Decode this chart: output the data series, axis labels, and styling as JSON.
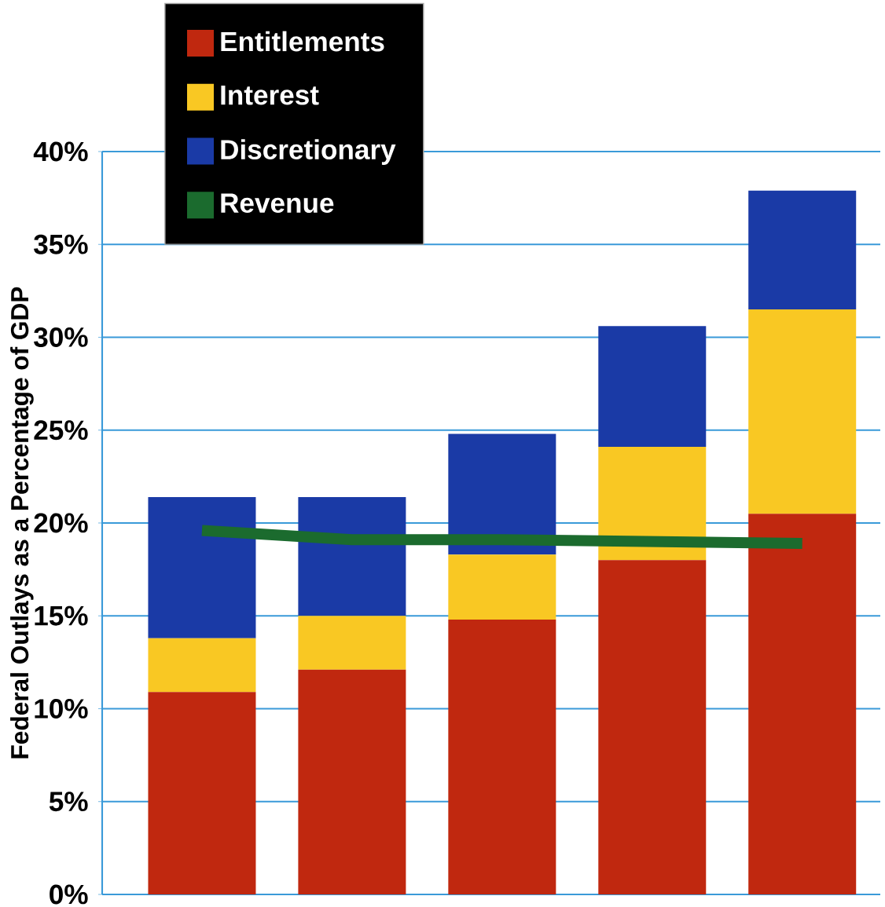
{
  "chart_data": {
    "type": "bar",
    "stacked": true,
    "ylabel": "Federal Outlays as a Percentage of GDP",
    "categories": [
      null,
      null,
      null,
      null,
      null
    ],
    "ylim": [
      0,
      40
    ],
    "yticks": [
      {
        "value": 0,
        "label": "0%"
      },
      {
        "value": 5,
        "label": "5%"
      },
      {
        "value": 10,
        "label": "10%"
      },
      {
        "value": 15,
        "label": "15%"
      },
      {
        "value": 20,
        "label": "20%"
      },
      {
        "value": 25,
        "label": "25%"
      },
      {
        "value": 30,
        "label": "30%"
      },
      {
        "value": 35,
        "label": "35%"
      },
      {
        "value": 40,
        "label": "40%"
      }
    ],
    "grid": "y",
    "legend": "top left",
    "series": [
      {
        "name": "Entitlements",
        "color": "#c0280f",
        "values": [
          10.9,
          12.1,
          14.8,
          18.0,
          20.5
        ]
      },
      {
        "name": "Interest",
        "color": "#f9c823",
        "values": [
          2.9,
          2.9,
          3.5,
          6.1,
          11.0
        ]
      },
      {
        "name": "Discretionary",
        "color": "#1a3aa6",
        "values": [
          7.6,
          6.4,
          6.5,
          6.5,
          6.4
        ]
      },
      {
        "name": "Revenue",
        "type": "line",
        "color": "#1b6b2e",
        "values": [
          19.6,
          19.1,
          19.1,
          19.0,
          18.9
        ]
      }
    ]
  }
}
